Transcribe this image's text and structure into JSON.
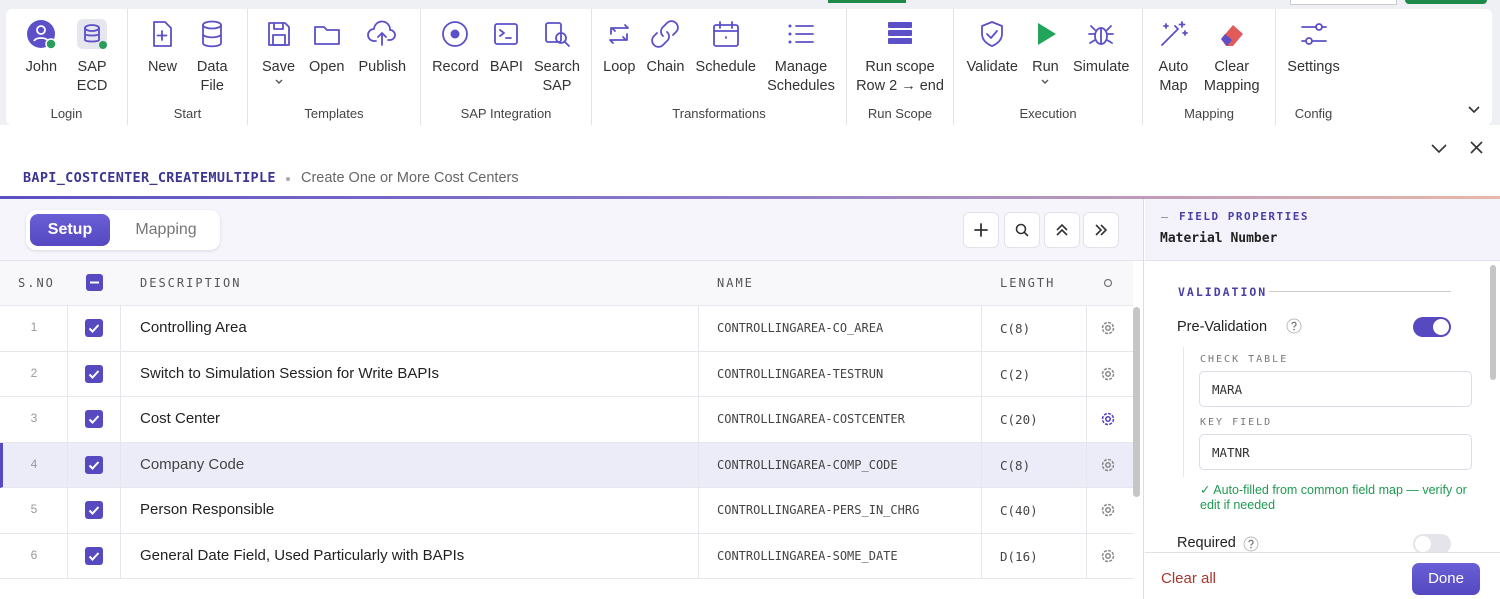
{
  "ribbon": {
    "groups": [
      {
        "label": "Login",
        "buttons": [
          {
            "lines": [
              "John"
            ]
          },
          {
            "lines": [
              "SAP",
              "ECD"
            ]
          }
        ]
      },
      {
        "label": "Start",
        "buttons": [
          {
            "lines": [
              "New"
            ]
          },
          {
            "lines": [
              "Data",
              "File"
            ]
          }
        ]
      },
      {
        "label": "Templates",
        "buttons": [
          {
            "lines": [
              "Save"
            ]
          },
          {
            "lines": [
              "Open"
            ]
          },
          {
            "lines": [
              "Publish"
            ]
          }
        ]
      },
      {
        "label": "SAP Integration",
        "buttons": [
          {
            "lines": [
              "Record"
            ]
          },
          {
            "lines": [
              "BAPI"
            ]
          },
          {
            "lines": [
              "Search",
              "SAP"
            ]
          }
        ]
      },
      {
        "label": "Transformations",
        "buttons": [
          {
            "lines": [
              "Loop"
            ]
          },
          {
            "lines": [
              "Chain"
            ]
          },
          {
            "lines": [
              "Schedule"
            ]
          },
          {
            "lines": [
              "Manage",
              "Schedules"
            ]
          }
        ]
      },
      {
        "label": "Run Scope",
        "buttons": [
          {
            "lines": [
              "Run scope",
              "Row 2 → end"
            ]
          }
        ]
      },
      {
        "label": "Execution",
        "buttons": [
          {
            "lines": [
              "Validate"
            ]
          },
          {
            "lines": [
              "Run"
            ]
          },
          {
            "lines": [
              "Simulate"
            ]
          }
        ]
      },
      {
        "label": "Mapping",
        "buttons": [
          {
            "lines": [
              "Auto",
              "Map"
            ]
          },
          {
            "lines": [
              "Clear",
              "Mapping"
            ]
          }
        ]
      },
      {
        "label": "Config",
        "buttons": [
          {
            "lines": [
              "Settings"
            ]
          }
        ]
      }
    ]
  },
  "header": {
    "title": "BAPI_COSTCENTER_CREATEMULTIPLE",
    "subtitle": "Create One or More Cost Centers"
  },
  "tabs": [
    "Setup",
    "Mapping"
  ],
  "table": {
    "columns": [
      "S.NO",
      "DESCRIPTION",
      "NAME",
      "LENGTH"
    ],
    "rows": [
      [
        "1",
        "Controlling Area",
        "CONTROLLINGAREA-CO_AREA",
        "C(8)"
      ],
      [
        "2",
        "Switch to Simulation Session for Write BAPIs",
        "CONTROLLINGAREA-TESTRUN",
        "C(2)"
      ],
      [
        "3",
        "Cost Center",
        "CONTROLLINGAREA-COSTCENTER",
        "C(20)"
      ],
      [
        "4",
        "Company Code",
        "CONTROLLINGAREA-COMP_CODE",
        "C(8)"
      ],
      [
        "5",
        "Person Responsible",
        "CONTROLLINGAREA-PERS_IN_CHRG",
        "C(40)"
      ],
      [
        "6",
        "General Date Field, Used Particularly with BAPIs",
        "CONTROLLINGAREA-SOME_DATE",
        "D(16)"
      ]
    ]
  },
  "properties": {
    "heading": "FIELD PROPERTIES",
    "field": "Material Number",
    "section": "VALIDATION",
    "pre_validation": "Pre-Validation",
    "check_table_label": "CHECK TABLE",
    "check_table": "MARA",
    "key_field_label": "KEY FIELD",
    "key_field": "MATNR",
    "note": "✓ Auto-filled from common field map — verify or edit if needed",
    "required": "Required"
  },
  "footer": {
    "clear": "Clear all",
    "done": "Done"
  }
}
